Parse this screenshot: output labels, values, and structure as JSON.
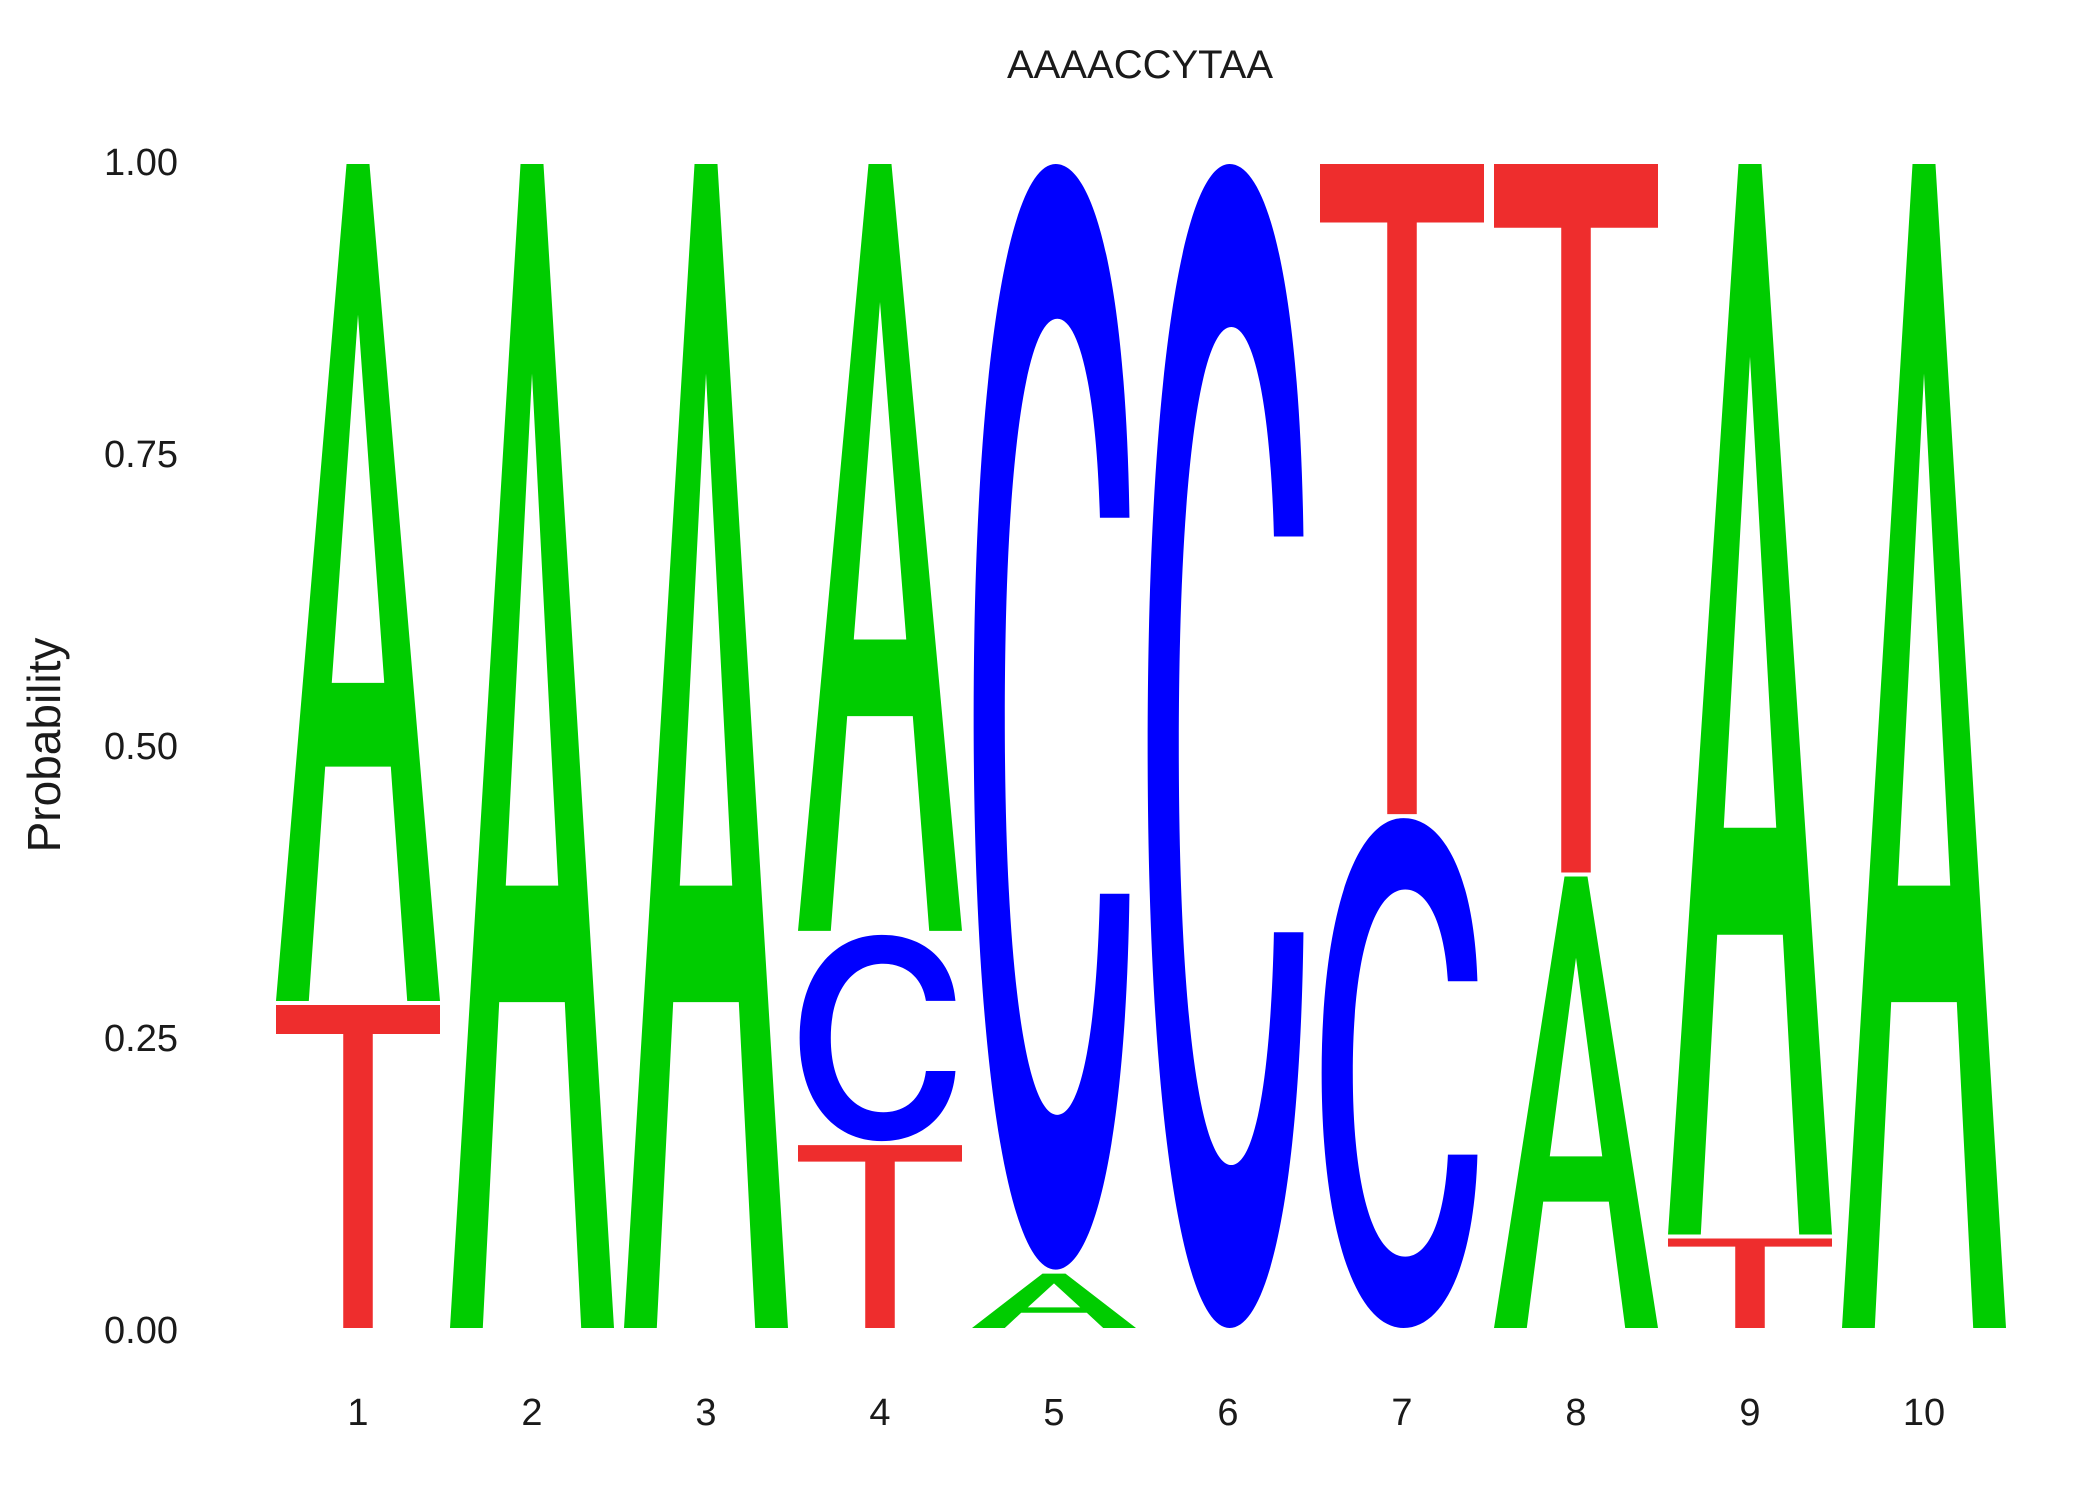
{
  "chart_data": {
    "type": "sequence-logo",
    "title": "AAAACCYTAA",
    "ylabel": "Probability",
    "xlabel": "",
    "ylim": [
      0,
      1
    ],
    "yticks": [
      "0.00",
      "0.25",
      "0.50",
      "0.75",
      "1.00"
    ],
    "yticks_values": [
      0,
      0.25,
      0.5,
      0.75,
      1.0
    ],
    "grid": false,
    "legend": "none",
    "colors": {
      "A": "#00cc00",
      "C": "#0000ff",
      "T": "#ee2d2d"
    },
    "positions": [
      {
        "label": "1",
        "stack": [
          {
            "base": "T",
            "prob": 0.28
          },
          {
            "base": "A",
            "prob": 0.72
          }
        ]
      },
      {
        "label": "2",
        "stack": [
          {
            "base": "A",
            "prob": 1.0
          }
        ]
      },
      {
        "label": "3",
        "stack": [
          {
            "base": "A",
            "prob": 1.0
          }
        ]
      },
      {
        "label": "4",
        "stack": [
          {
            "base": "T",
            "prob": 0.16
          },
          {
            "base": "C",
            "prob": 0.18
          },
          {
            "base": "A",
            "prob": 0.66
          }
        ]
      },
      {
        "label": "5",
        "stack": [
          {
            "base": "A",
            "prob": 0.05
          },
          {
            "base": "C",
            "prob": 0.95
          }
        ]
      },
      {
        "label": "6",
        "stack": [
          {
            "base": "C",
            "prob": 1.0
          }
        ]
      },
      {
        "label": "7",
        "stack": [
          {
            "base": "C",
            "prob": 0.44
          },
          {
            "base": "T",
            "prob": 0.56
          }
        ]
      },
      {
        "label": "8",
        "stack": [
          {
            "base": "A",
            "prob": 0.39
          },
          {
            "base": "T",
            "prob": 0.61
          }
        ]
      },
      {
        "label": "9",
        "stack": [
          {
            "base": "T",
            "prob": 0.08
          },
          {
            "base": "A",
            "prob": 0.92
          }
        ]
      },
      {
        "label": "10",
        "stack": [
          {
            "base": "A",
            "prob": 1.0
          }
        ]
      }
    ]
  }
}
